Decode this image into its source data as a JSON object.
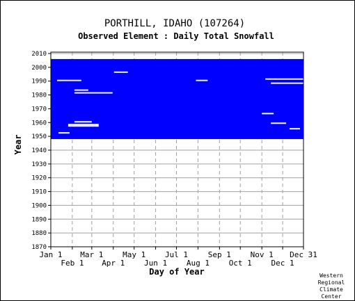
{
  "chart_data": {
    "type": "heatmap",
    "title": "PORTHILL, IDAHO    (107264)",
    "subtitle": "Observed Element : Daily Total Snowfall",
    "xlabel": "Day of Year",
    "ylabel": "Year",
    "xlim": [
      1,
      365
    ],
    "ylim": [
      1870,
      2011
    ],
    "y_ticks": [
      1870,
      1880,
      1890,
      1900,
      1910,
      1920,
      1930,
      1940,
      1950,
      1960,
      1970,
      1980,
      1990,
      2000,
      2010
    ],
    "x_ticks_upper": [
      {
        "label": "Jan 1",
        "day": 1
      },
      {
        "label": "Mar 1",
        "day": 60
      },
      {
        "label": "May 1",
        "day": 121
      },
      {
        "label": "Jul 1",
        "day": 182
      },
      {
        "label": "Sep 1",
        "day": 244
      },
      {
        "label": "Nov 1",
        "day": 305
      },
      {
        "label": "Dec 31",
        "day": 365
      }
    ],
    "x_ticks_lower": [
      {
        "label": "Feb 1",
        "day": 32
      },
      {
        "label": "Apr 1",
        "day": 91
      },
      {
        "label": "Jun 1",
        "day": 152
      },
      {
        "label": "Aug 1",
        "day": 213
      },
      {
        "label": "Oct 1",
        "day": 274
      },
      {
        "label": "Dec 1",
        "day": 335
      }
    ],
    "grid": true,
    "coverage_color": "#0000ff",
    "coverage": {
      "year_start": 1948,
      "year_end": 2005,
      "day_start": 1,
      "day_end": 365
    },
    "missing_segments": [
      {
        "year": 1952,
        "day_start": 12,
        "day_end": 28
      },
      {
        "year": 1957,
        "day_start": 26,
        "day_end": 70
      },
      {
        "year": 1958,
        "day_start": 26,
        "day_end": 70
      },
      {
        "year": 1960,
        "day_start": 35,
        "day_end": 60
      },
      {
        "year": 1981,
        "day_start": 35,
        "day_end": 90
      },
      {
        "year": 1983,
        "day_start": 35,
        "day_end": 55
      },
      {
        "year": 1990,
        "day_start": 10,
        "day_end": 45
      },
      {
        "year": 1990,
        "day_start": 210,
        "day_end": 227
      },
      {
        "year": 1996,
        "day_start": 92,
        "day_end": 112
      },
      {
        "year": 1991,
        "day_start": 310,
        "day_end": 365
      },
      {
        "year": 1988,
        "day_start": 318,
        "day_end": 365
      },
      {
        "year": 1966,
        "day_start": 305,
        "day_end": 322
      },
      {
        "year": 1959,
        "day_start": 318,
        "day_end": 340
      },
      {
        "year": 1955,
        "day_start": 345,
        "day_end": 360
      }
    ],
    "credit": [
      "Western",
      "Regional",
      "Climate",
      "Center"
    ]
  }
}
